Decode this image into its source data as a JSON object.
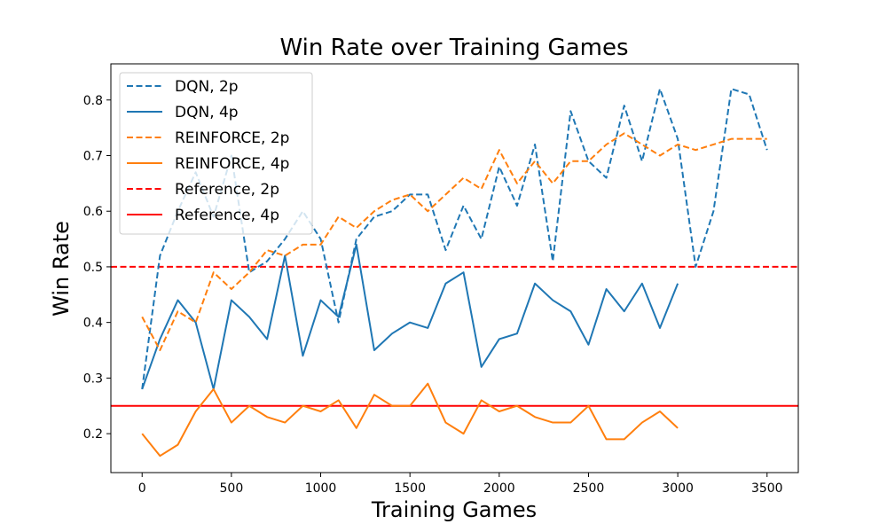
{
  "chart_data": {
    "type": "line",
    "title": "Win Rate over Training Games",
    "xlabel": "Training Games",
    "ylabel": "Win Rate",
    "xlim": [
      -175,
      3675
    ],
    "ylim": [
      0.13,
      0.865
    ],
    "xticks": [
      0,
      500,
      1000,
      1500,
      2000,
      2500,
      3000,
      3500
    ],
    "yticks": [
      0.2,
      0.3,
      0.4,
      0.5,
      0.6,
      0.7,
      0.8
    ],
    "grid": false,
    "legend_position": "top-left",
    "series": [
      {
        "name": "DQN, 2p",
        "color": "#1f77b4",
        "dash": "dashed",
        "x": [
          0,
          100,
          200,
          300,
          400,
          500,
          600,
          700,
          800,
          900,
          1000,
          1100,
          1200,
          1300,
          1400,
          1500,
          1600,
          1700,
          1800,
          1900,
          2000,
          2100,
          2200,
          2300,
          2400,
          2500,
          2600,
          2700,
          2800,
          2900,
          3000,
          3100,
          3200,
          3300,
          3400,
          3500
        ],
        "y": [
          0.28,
          0.52,
          0.6,
          0.67,
          0.59,
          0.7,
          0.49,
          0.51,
          0.55,
          0.6,
          0.55,
          0.4,
          0.55,
          0.59,
          0.6,
          0.63,
          0.63,
          0.53,
          0.61,
          0.55,
          0.68,
          0.61,
          0.72,
          0.51,
          0.78,
          0.69,
          0.66,
          0.79,
          0.69,
          0.82,
          0.73,
          0.5,
          0.6,
          0.82,
          0.81,
          0.71
        ]
      },
      {
        "name": "DQN, 4p",
        "color": "#1f77b4",
        "dash": "solid",
        "x": [
          0,
          100,
          200,
          300,
          400,
          500,
          600,
          700,
          800,
          900,
          1000,
          1100,
          1200,
          1300,
          1400,
          1500,
          1600,
          1700,
          1800,
          1900,
          2000,
          2100,
          2200,
          2300,
          2400,
          2500,
          2600,
          2700,
          2800,
          2900,
          3000
        ],
        "y": [
          0.28,
          0.37,
          0.44,
          0.4,
          0.28,
          0.44,
          0.41,
          0.37,
          0.52,
          0.34,
          0.44,
          0.41,
          0.54,
          0.35,
          0.38,
          0.4,
          0.39,
          0.47,
          0.49,
          0.32,
          0.37,
          0.38,
          0.47,
          0.44,
          0.42,
          0.36,
          0.46,
          0.42,
          0.47,
          0.39,
          0.47
        ]
      },
      {
        "name": "REINFORCE, 2p",
        "color": "#ff7f0e",
        "dash": "dashed",
        "x": [
          0,
          100,
          200,
          300,
          400,
          500,
          600,
          700,
          800,
          900,
          1000,
          1100,
          1200,
          1300,
          1400,
          1500,
          1600,
          1700,
          1800,
          1900,
          2000,
          2100,
          2200,
          2300,
          2400,
          2500,
          2600,
          2700,
          2800,
          2900,
          3000,
          3100,
          3200,
          3300,
          3400,
          3500
        ],
        "y": [
          0.41,
          0.35,
          0.42,
          0.4,
          0.49,
          0.46,
          0.49,
          0.53,
          0.52,
          0.54,
          0.54,
          0.59,
          0.57,
          0.6,
          0.62,
          0.63,
          0.6,
          0.63,
          0.66,
          0.64,
          0.71,
          0.65,
          0.69,
          0.65,
          0.69,
          0.69,
          0.72,
          0.74,
          0.72,
          0.7,
          0.72,
          0.71,
          0.72,
          0.73,
          0.73,
          0.73
        ]
      },
      {
        "name": "REINFORCE, 4p",
        "color": "#ff7f0e",
        "dash": "solid",
        "x": [
          0,
          100,
          200,
          300,
          400,
          500,
          600,
          700,
          800,
          900,
          1000,
          1100,
          1200,
          1300,
          1400,
          1500,
          1600,
          1700,
          1800,
          1900,
          2000,
          2100,
          2200,
          2300,
          2400,
          2500,
          2600,
          2700,
          2800,
          2900,
          3000
        ],
        "y": [
          0.2,
          0.16,
          0.18,
          0.24,
          0.28,
          0.22,
          0.25,
          0.23,
          0.22,
          0.25,
          0.24,
          0.26,
          0.21,
          0.27,
          0.25,
          0.25,
          0.29,
          0.22,
          0.2,
          0.26,
          0.24,
          0.25,
          0.23,
          0.22,
          0.22,
          0.25,
          0.19,
          0.19,
          0.22,
          0.24,
          0.21
        ]
      }
    ],
    "reference_lines": [
      {
        "name": "Reference, 2p",
        "color": "#ff0000",
        "dash": "dashed",
        "y": 0.5
      },
      {
        "name": "Reference, 4p",
        "color": "#ff0000",
        "dash": "solid",
        "y": 0.25
      }
    ]
  }
}
